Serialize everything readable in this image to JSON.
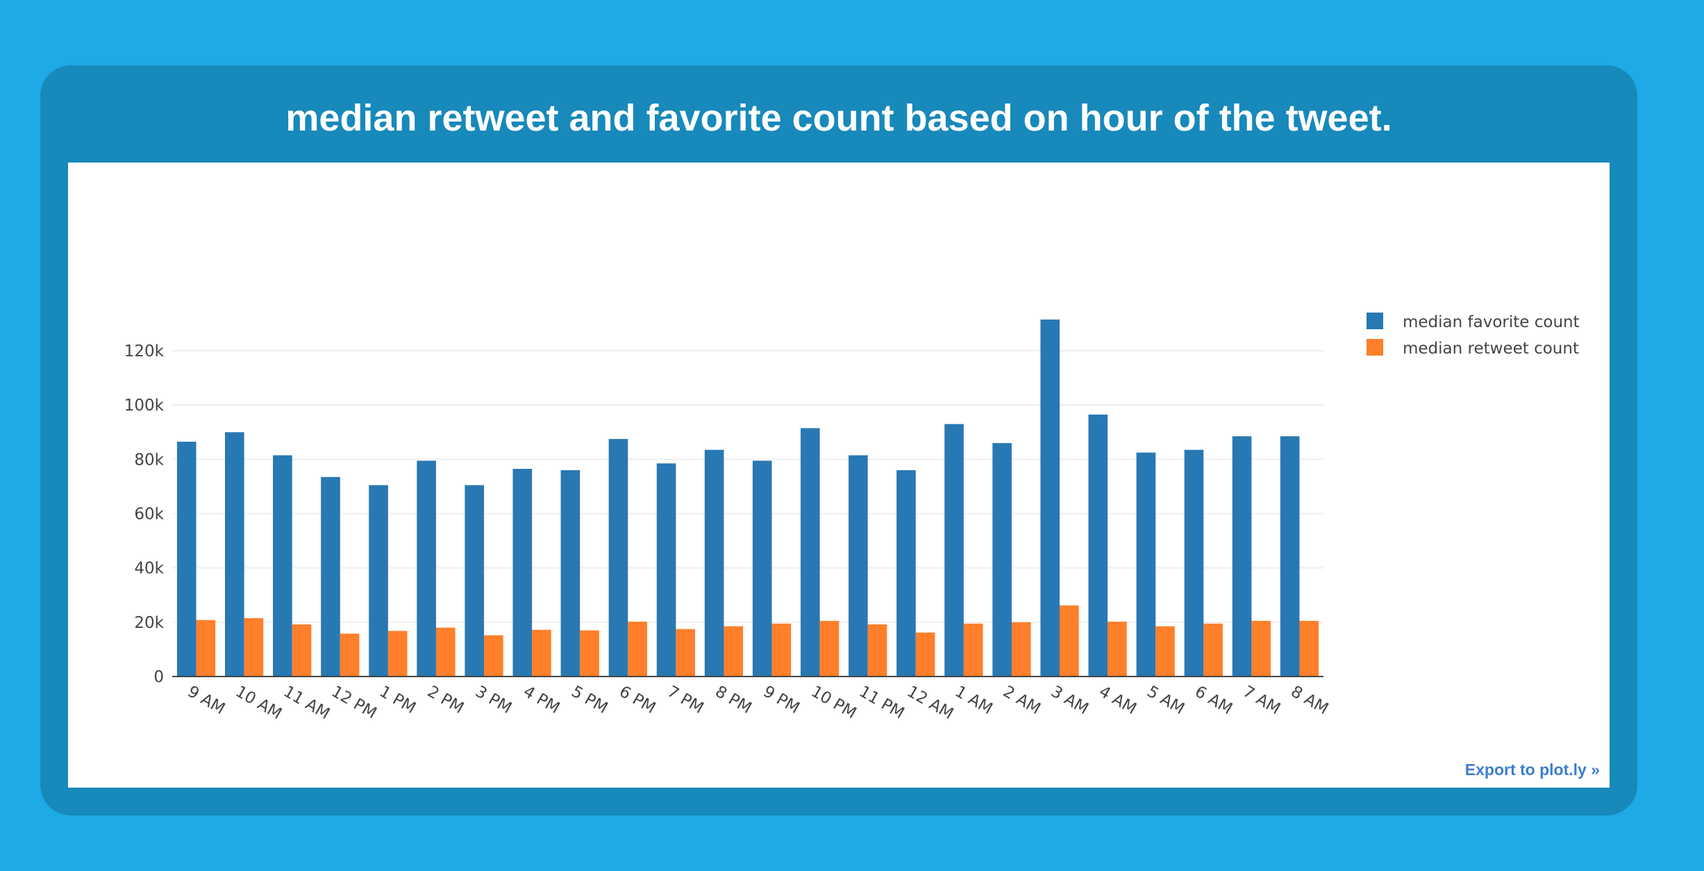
{
  "page": {
    "title": "median retweet and favorite count based on hour of the tweet.",
    "export_label": "Export to plot.ly »"
  },
  "chart_data": {
    "type": "bar",
    "title": "median retweet and favorite count based on hour of the tweet.",
    "xlabel": "",
    "ylabel": "",
    "categories": [
      "9 AM",
      "10 AM",
      "11 AM",
      "12 PM",
      "1 PM",
      "2 PM",
      "3 PM",
      "4 PM",
      "5 PM",
      "6 PM",
      "7 PM",
      "8 PM",
      "9 PM",
      "10 PM",
      "11 PM",
      "12 AM",
      "1 AM",
      "2 AM",
      "3 AM",
      "4 AM",
      "5 AM",
      "6 AM",
      "7 AM",
      "8 AM"
    ],
    "series": [
      {
        "name": "median favorite count",
        "color": "#2878b4",
        "values": [
          86500,
          90000,
          81500,
          73500,
          70500,
          79500,
          70500,
          76500,
          76000,
          87500,
          78500,
          83500,
          79500,
          91500,
          81500,
          76000,
          93000,
          86000,
          131500,
          96500,
          82500,
          83500,
          88500,
          88500
        ]
      },
      {
        "name": "median retweet count",
        "color": "#ff7f2a",
        "values": [
          20800,
          21500,
          19200,
          15800,
          16800,
          18000,
          15200,
          17200,
          17000,
          20200,
          17500,
          18500,
          19500,
          20500,
          19200,
          16200,
          19500,
          20000,
          26200,
          20200,
          18500,
          19500,
          20500,
          20500
        ]
      }
    ],
    "ylim": [
      0,
      138000
    ],
    "yticks": [
      {
        "value": 0,
        "label": "0"
      },
      {
        "value": 20000,
        "label": "20k"
      },
      {
        "value": 40000,
        "label": "40k"
      },
      {
        "value": 60000,
        "label": "60k"
      },
      {
        "value": 80000,
        "label": "80k"
      },
      {
        "value": 100000,
        "label": "100k"
      },
      {
        "value": 120000,
        "label": "120k"
      }
    ],
    "grid": true,
    "legend_position": "top-right"
  }
}
